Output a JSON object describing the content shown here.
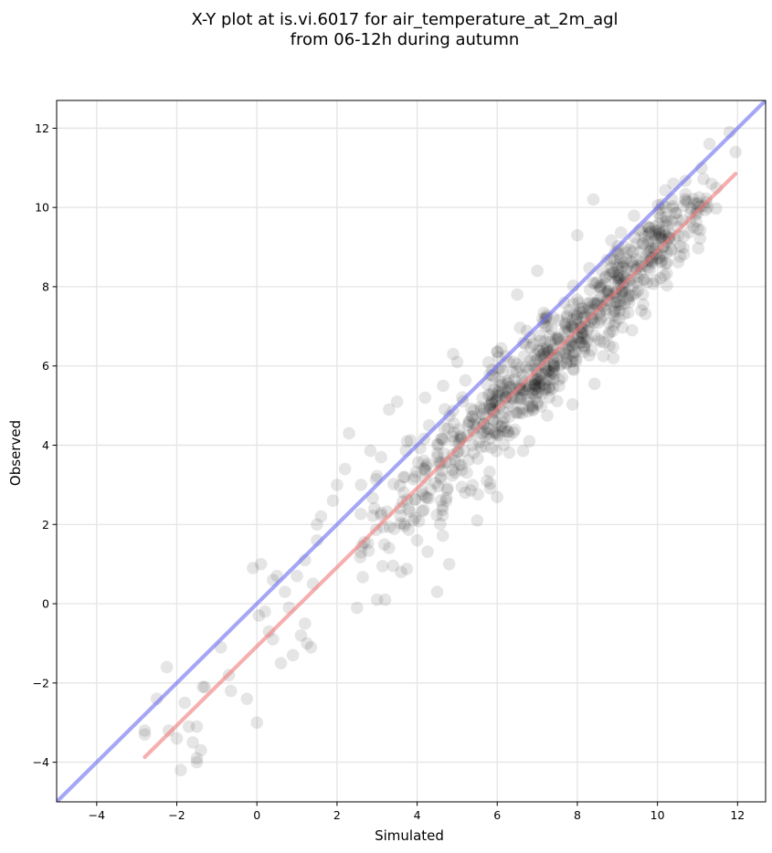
{
  "chart_data": {
    "type": "scatter",
    "title": [
      "X-Y plot at is.vi.6017 for air_temperature_at_2m_agl",
      "from 06-12h during autumn"
    ],
    "xlabel": "Simulated",
    "ylabel": "Observed",
    "xlim": [
      -5,
      12.7
    ],
    "ylim": [
      -5,
      12.7
    ],
    "xticks": [
      -4,
      -2,
      0,
      2,
      4,
      6,
      8,
      10,
      12
    ],
    "yticks": [
      -4,
      -2,
      0,
      2,
      4,
      6,
      8,
      10,
      12
    ],
    "xtick_labels": [
      "−4",
      "−2",
      "0",
      "2",
      "4",
      "6",
      "8",
      "10",
      "12"
    ],
    "ytick_labels": [
      "−4",
      "−2",
      "0",
      "2",
      "4",
      "6",
      "8",
      "10",
      "12"
    ],
    "grid": true,
    "legend": null,
    "colors": {
      "points": "#000000",
      "identity_line": "#6b6bf0",
      "fit_line": "#f07a7a",
      "grid": "#e6e6e6"
    },
    "lines": [
      {
        "kind": "identity",
        "x": [
          -5,
          12.7
        ],
        "y": [
          -5,
          12.7
        ]
      },
      {
        "kind": "fit",
        "x": [
          -2.8,
          11.95
        ],
        "y": [
          -3.87,
          10.85
        ]
      }
    ],
    "points": {
      "x": [
        -2.8,
        -2.8,
        -2.5,
        -2.25,
        -2.2,
        -2.0,
        -1.9,
        -1.8,
        -1.7,
        -1.6,
        -1.5,
        -1.5,
        -1.5,
        -1.4,
        -1.35,
        -1.3,
        -0.9,
        -0.7,
        -0.65,
        -0.25,
        0.0,
        0.05,
        0.1,
        0.2,
        0.3,
        0.4,
        0.5,
        0.6,
        0.7,
        0.9,
        1.0,
        1.1,
        1.2,
        1.25,
        1.35,
        1.4,
        1.5,
        1.5,
        1.6,
        1.9,
        2.0,
        2.2,
        2.3,
        2.6,
        3.1,
        3.3,
        3.5,
        3.75,
        4.2,
        4.3,
        4.65,
        4.9,
        5.0,
        4.0,
        3.6,
        3.0,
        2.5,
        4.5,
        6.5,
        7.0,
        8.0,
        8.4,
        9.0,
        10.4,
        11.1,
        11.3,
        11.8,
        11.95,
        10.2,
        7.2,
        6.0,
        5.5,
        2.6,
        0.8,
        1.2,
        0.4,
        -0.1,
        3.2,
        4.8,
        8.9,
        9.6,
        10.9,
        5.2,
        6.8
      ],
      "y": [
        -3.2,
        -3.3,
        -2.4,
        -1.6,
        -3.2,
        -3.4,
        -4.2,
        -2.5,
        -3.1,
        -3.5,
        -3.1,
        -3.9,
        -4.0,
        -3.7,
        -2.1,
        -2.1,
        -1.1,
        -1.8,
        -2.2,
        -2.4,
        -3.0,
        -0.3,
        1.0,
        -0.2,
        -0.7,
        -0.9,
        0.7,
        -1.5,
        0.3,
        -1.3,
        0.7,
        -0.8,
        -0.5,
        -1.0,
        -1.1,
        0.5,
        1.6,
        2.0,
        2.2,
        2.6,
        3.0,
        3.4,
        4.3,
        3.0,
        3.7,
        4.9,
        5.1,
        4.1,
        5.2,
        4.5,
        5.5,
        6.3,
        6.1,
        1.6,
        0.8,
        0.1,
        -0.1,
        0.3,
        7.8,
        8.4,
        9.3,
        10.2,
        8.9,
        10.6,
        11.0,
        11.6,
        11.9,
        11.4,
        10.0,
        7.0,
        4.3,
        2.1,
        1.3,
        -0.1,
        1.1,
        0.6,
        0.9,
        0.1,
        1.0,
        6.2,
        7.4,
        9.5,
        2.8,
        4.1
      ]
    },
    "dense_band": [
      {
        "x_from": 2.5,
        "x_to": 3.5,
        "cx": 3.0,
        "cy": 1.95,
        "sx": 0.32,
        "sy": 0.62,
        "n": 28
      },
      {
        "x_from": 3.5,
        "x_to": 4.5,
        "cx": 4.0,
        "cy": 2.95,
        "sx": 0.32,
        "sy": 0.72,
        "n": 48
      },
      {
        "x_from": 4.5,
        "x_to": 5.5,
        "cx": 5.0,
        "cy": 3.85,
        "sx": 0.32,
        "sy": 0.72,
        "n": 70
      },
      {
        "x_from": 5.5,
        "x_to": 6.5,
        "cx": 6.0,
        "cy": 4.9,
        "sx": 0.33,
        "sy": 0.68,
        "n": 110
      },
      {
        "x_from": 6.5,
        "x_to": 7.5,
        "cx": 7.0,
        "cy": 5.85,
        "sx": 0.32,
        "sy": 0.62,
        "n": 140
      },
      {
        "x_from": 7.5,
        "x_to": 8.5,
        "cx": 8.0,
        "cy": 6.85,
        "sx": 0.32,
        "sy": 0.62,
        "n": 120
      },
      {
        "x_from": 8.5,
        "x_to": 9.5,
        "cx": 9.0,
        "cy": 8.0,
        "sx": 0.32,
        "sy": 0.58,
        "n": 120
      },
      {
        "x_from": 9.5,
        "x_to": 10.5,
        "cx": 10.0,
        "cy": 9.0,
        "sx": 0.32,
        "sy": 0.52,
        "n": 100
      },
      {
        "x_from": 10.5,
        "x_to": 11.3,
        "cx": 10.85,
        "cy": 9.75,
        "sx": 0.25,
        "sy": 0.45,
        "n": 40
      }
    ]
  }
}
